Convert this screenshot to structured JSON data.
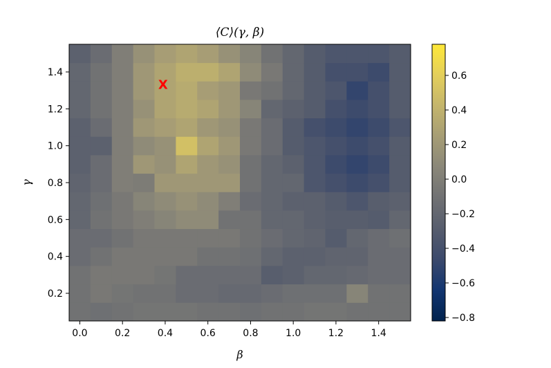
{
  "chart_data": {
    "type": "heatmap",
    "title": "⟨C⟩(γ, β)",
    "xlabel": "β",
    "ylabel": "γ",
    "x_ticks": [
      0.0,
      0.2,
      0.4,
      0.6,
      0.8,
      1.0,
      1.2,
      1.4
    ],
    "x_tick_labels": [
      "0.0",
      "0.2",
      "0.4",
      "0.6",
      "0.8",
      "1.0",
      "1.2",
      "1.4"
    ],
    "y_ticks": [
      0.2,
      0.4,
      0.6,
      0.8,
      1.0,
      1.2,
      1.4
    ],
    "y_tick_labels": [
      "0.2",
      "0.4",
      "0.6",
      "0.8",
      "1.0",
      "1.2",
      "1.4"
    ],
    "xlim": [
      -0.05,
      1.55
    ],
    "ylim": [
      0.05,
      1.55
    ],
    "beta_values": [
      0.0,
      0.1,
      0.2,
      0.3,
      0.4,
      0.5,
      0.6,
      0.7,
      0.8,
      0.9,
      1.0,
      1.1,
      1.2,
      1.3,
      1.4,
      1.5
    ],
    "gamma_values": [
      0.1,
      0.2,
      0.3,
      0.4,
      0.5,
      0.6,
      0.7,
      0.8,
      0.9,
      1.0,
      1.1,
      1.2,
      1.3,
      1.4,
      1.5
    ],
    "values": [
      [
        -0.1,
        -0.12,
        -0.1,
        -0.08,
        -0.08,
        -0.08,
        -0.1,
        -0.1,
        -0.12,
        -0.1,
        -0.1,
        -0.08,
        -0.08,
        -0.1,
        -0.1,
        -0.1
      ],
      [
        -0.1,
        -0.05,
        -0.08,
        -0.1,
        -0.1,
        -0.15,
        -0.15,
        -0.18,
        -0.18,
        -0.15,
        -0.12,
        -0.12,
        -0.12,
        0.05,
        -0.1,
        -0.1
      ],
      [
        -0.1,
        -0.05,
        -0.05,
        -0.05,
        -0.08,
        -0.15,
        -0.15,
        -0.15,
        -0.15,
        -0.28,
        -0.25,
        -0.2,
        -0.2,
        -0.18,
        -0.15,
        -0.15
      ],
      [
        -0.15,
        -0.1,
        -0.05,
        -0.05,
        -0.05,
        -0.05,
        -0.1,
        -0.1,
        -0.12,
        -0.2,
        -0.25,
        -0.25,
        -0.22,
        -0.22,
        -0.15,
        -0.15
      ],
      [
        -0.15,
        -0.15,
        -0.1,
        -0.05,
        -0.05,
        -0.05,
        -0.05,
        -0.05,
        -0.1,
        -0.15,
        -0.2,
        -0.22,
        -0.3,
        -0.2,
        -0.15,
        -0.12
      ],
      [
        -0.2,
        -0.1,
        -0.05,
        0.0,
        0.05,
        0.1,
        0.1,
        -0.1,
        -0.1,
        -0.2,
        -0.2,
        -0.25,
        -0.28,
        -0.28,
        -0.3,
        -0.2
      ],
      [
        -0.2,
        -0.12,
        -0.05,
        0.05,
        0.1,
        0.15,
        0.1,
        0.0,
        -0.15,
        -0.2,
        -0.25,
        -0.25,
        -0.3,
        -0.35,
        -0.28,
        -0.25
      ],
      [
        -0.22,
        -0.15,
        0.0,
        -0.02,
        0.2,
        0.2,
        0.2,
        0.2,
        -0.1,
        -0.2,
        -0.2,
        -0.35,
        -0.4,
        -0.45,
        -0.4,
        -0.3
      ],
      [
        -0.25,
        -0.15,
        0.0,
        0.2,
        0.15,
        0.3,
        0.2,
        0.15,
        -0.1,
        -0.2,
        -0.25,
        -0.35,
        -0.45,
        -0.5,
        -0.45,
        -0.3
      ],
      [
        -0.25,
        -0.25,
        0.0,
        0.1,
        0.15,
        0.5,
        0.3,
        0.2,
        -0.05,
        -0.15,
        -0.3,
        -0.35,
        -0.4,
        -0.45,
        -0.4,
        -0.3
      ],
      [
        -0.25,
        -0.15,
        0.0,
        0.2,
        0.25,
        0.3,
        0.2,
        0.15,
        -0.05,
        -0.15,
        -0.3,
        -0.4,
        -0.45,
        -0.5,
        -0.45,
        -0.35
      ],
      [
        -0.2,
        -0.1,
        0.0,
        0.15,
        0.3,
        0.35,
        0.3,
        0.2,
        0.05,
        -0.2,
        -0.25,
        -0.3,
        -0.4,
        -0.45,
        -0.4,
        -0.3
      ],
      [
        -0.2,
        -0.1,
        0.0,
        0.2,
        0.3,
        0.35,
        0.25,
        0.2,
        -0.05,
        -0.1,
        -0.2,
        -0.3,
        -0.35,
        -0.5,
        -0.4,
        -0.3
      ],
      [
        -0.2,
        -0.1,
        0.0,
        0.2,
        0.3,
        0.38,
        0.38,
        0.3,
        0.1,
        -0.05,
        -0.2,
        -0.3,
        -0.4,
        -0.4,
        -0.45,
        -0.3
      ],
      [
        -0.25,
        -0.15,
        0.0,
        0.15,
        0.25,
        0.3,
        0.25,
        0.15,
        0.05,
        -0.1,
        -0.2,
        -0.3,
        -0.35,
        -0.35,
        -0.35,
        -0.3
      ]
    ],
    "marker": {
      "beta": 0.39,
      "gamma": 1.33,
      "symbol": "X",
      "color": "#ff0000"
    },
    "colorbar": {
      "min": -0.82,
      "max": 0.78,
      "ticks": [
        -0.8,
        -0.6,
        -0.4,
        -0.2,
        0.0,
        0.2,
        0.4,
        0.6
      ],
      "tick_labels": [
        "−0.8",
        "−0.6",
        "−0.4",
        "−0.2",
        "0.0",
        "0.2",
        "0.4",
        "0.6"
      ],
      "colormap": "cividis",
      "stops": [
        "#00224e",
        "#123570",
        "#3b496c",
        "#575d6d",
        "#707173",
        "#8a8779",
        "#a69d75",
        "#c4b56c",
        "#e4cf5b",
        "#fee838"
      ]
    }
  }
}
